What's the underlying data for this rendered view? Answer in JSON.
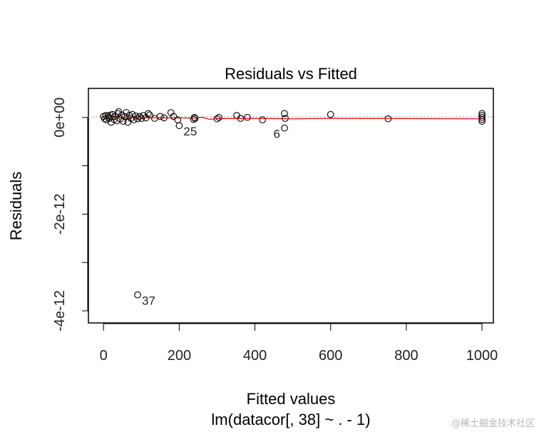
{
  "chart_data": {
    "type": "scatter",
    "title": "Residuals vs Fitted",
    "xlabel": "Fitted values",
    "ylabel": "Residuals",
    "subtitle": "lm(datacor[, 38] ~ . - 1)",
    "xlim": [
      -40,
      1030
    ],
    "ylim": [
      -4.25e-12,
      6e-13
    ],
    "xticks": [
      {
        "value": 0,
        "label": "0"
      },
      {
        "value": 200,
        "label": "200"
      },
      {
        "value": 400,
        "label": "400"
      },
      {
        "value": 600,
        "label": "600"
      },
      {
        "value": 800,
        "label": "800"
      },
      {
        "value": 1000,
        "label": "1000"
      }
    ],
    "yticks": [
      {
        "value": 0,
        "label": "0e+00"
      },
      {
        "value": -2e-12,
        "label": "-2e-12"
      },
      {
        "value": -4e-12,
        "label": "-4e-12"
      }
    ],
    "yminor_ticks": [
      -1e-12,
      -3e-12
    ],
    "reference_line": 0,
    "points": [
      {
        "x": 0,
        "y": 2e-14
      },
      {
        "x": 3,
        "y": -3e-14
      },
      {
        "x": 6,
        "y": 4e-14
      },
      {
        "x": 8,
        "y": -5e-14
      },
      {
        "x": 12,
        "y": 3e-14
      },
      {
        "x": 15,
        "y": -2e-14
      },
      {
        "x": 18,
        "y": 5e-14
      },
      {
        "x": 20,
        "y": -1e-13
      },
      {
        "x": 24,
        "y": 6e-14
      },
      {
        "x": 28,
        "y": -4e-14
      },
      {
        "x": 30,
        "y": 2e-14
      },
      {
        "x": 35,
        "y": -7e-14
      },
      {
        "x": 38,
        "y": 8e-14
      },
      {
        "x": 40,
        "y": 1.2e-13
      },
      {
        "x": 44,
        "y": -3e-14
      },
      {
        "x": 48,
        "y": 5e-14
      },
      {
        "x": 52,
        "y": -8e-14
      },
      {
        "x": 56,
        "y": 2e-14
      },
      {
        "x": 60,
        "y": 1e-13
      },
      {
        "x": 64,
        "y": -1e-13
      },
      {
        "x": 68,
        "y": 4e-14
      },
      {
        "x": 72,
        "y": -2e-14
      },
      {
        "x": 76,
        "y": 6e-14
      },
      {
        "x": 80,
        "y": -5e-14
      },
      {
        "x": 85,
        "y": 3e-14
      },
      {
        "x": 90,
        "y": -3e-14
      },
      {
        "x": 95,
        "y": 2e-14
      },
      {
        "x": 100,
        "y": -2e-14
      },
      {
        "x": 105,
        "y": 4e-14
      },
      {
        "x": 112,
        "y": -1e-14
      },
      {
        "x": 118,
        "y": 8e-14
      },
      {
        "x": 122,
        "y": 5e-14
      },
      {
        "x": 135,
        "y": -2e-14
      },
      {
        "x": 150,
        "y": 2e-14
      },
      {
        "x": 160,
        "y": -1e-14
      },
      {
        "x": 178,
        "y": 1e-13
      },
      {
        "x": 185,
        "y": 2e-14
      },
      {
        "x": 196,
        "y": -5e-14
      },
      {
        "x": 200,
        "y": -1.7e-13
      },
      {
        "x": 238,
        "y": -4e-14
      },
      {
        "x": 240,
        "y": 0.0
      },
      {
        "x": 242,
        "y": -2e-14
      },
      {
        "x": 300,
        "y": -3e-14
      },
      {
        "x": 305,
        "y": 0.0
      },
      {
        "x": 352,
        "y": 4e-14
      },
      {
        "x": 362,
        "y": -2e-14
      },
      {
        "x": 380,
        "y": 0.0
      },
      {
        "x": 420,
        "y": -5e-14
      },
      {
        "x": 478,
        "y": 8e-14
      },
      {
        "x": 480,
        "y": -2e-14
      },
      {
        "x": 478,
        "y": -2.2e-13
      },
      {
        "x": 600,
        "y": 6e-14
      },
      {
        "x": 752,
        "y": -3e-14
      },
      {
        "x": 1000,
        "y": 8e-14
      },
      {
        "x": 1000,
        "y": 4e-14
      },
      {
        "x": 1000,
        "y": 0.0
      },
      {
        "x": 1000,
        "y": -4e-14
      },
      {
        "x": 1000,
        "y": -8e-14
      },
      {
        "x": 90,
        "y": -3.67e-12
      }
    ],
    "point_labels": [
      {
        "x": 200,
        "y": -1.7e-13,
        "text": "25",
        "side": "right"
      },
      {
        "x": 478,
        "y": -2.2e-13,
        "text": "6",
        "side": "left"
      },
      {
        "x": 90,
        "y": -3.67e-12,
        "text": "37",
        "side": "right"
      }
    ],
    "smoother": {
      "color": "#e0000b",
      "x": [
        0,
        100,
        200,
        240,
        260,
        280,
        300,
        400,
        500,
        600,
        800,
        1000
      ],
      "y": [
        0,
        -5e-15,
        -1e-14,
        -1.5e-14,
        5e-15,
        -4e-14,
        -2.5e-14,
        -2e-14,
        -3e-14,
        -2e-14,
        -2.5e-14,
        -3e-14
      ]
    }
  },
  "watermark": "@稀土掘金技术社区"
}
